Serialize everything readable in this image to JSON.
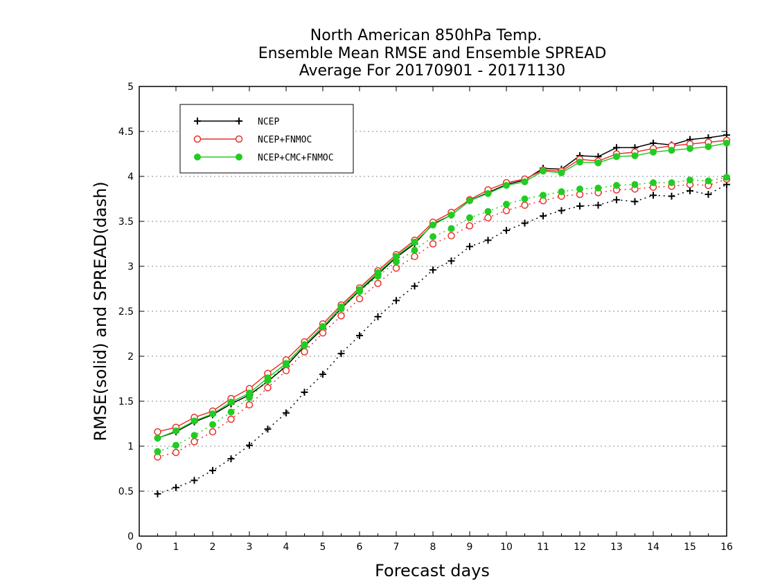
{
  "chart_data": {
    "type": "line",
    "title": [
      "North American 850hPa Temp.",
      "Ensemble Mean RMSE and Ensemble SPREAD",
      "Average For 20170901 - 20171130"
    ],
    "xlabel": "Forecast days",
    "ylabel": "RMSE(solid) and SPREAD(dash)",
    "xlim": [
      0,
      16
    ],
    "ylim": [
      0,
      5
    ],
    "xticks": [
      "0",
      "1",
      "2",
      "3",
      "4",
      "5",
      "6",
      "7",
      "8",
      "9",
      "10",
      "11",
      "12",
      "13",
      "14",
      "15",
      "16"
    ],
    "yticks": [
      "0",
      "0.5",
      "1",
      "1.5",
      "2",
      "2.5",
      "3",
      "3.5",
      "4",
      "4.5",
      "5"
    ],
    "grid": "horizontal-dotted",
    "legend_position": "top-left",
    "legend": [
      "NCEP",
      "NCEP+FNMOC",
      "NCEP+CMC+FNMOC"
    ],
    "x": [
      0.5,
      1,
      1.5,
      2,
      2.5,
      3,
      3.5,
      4,
      4.5,
      5,
      5.5,
      6,
      6.5,
      7,
      7.5,
      8,
      8.5,
      9,
      9.5,
      10,
      10.5,
      11,
      11.5,
      12,
      12.5,
      13,
      13.5,
      14,
      14.5,
      15,
      15.5,
      16
    ],
    "series": [
      {
        "name": "NCEP",
        "kind": "RMSE",
        "marker": "plus",
        "color": "#000000",
        "dash": false,
        "values": [
          1.09,
          1.16,
          1.27,
          1.35,
          1.47,
          1.57,
          1.72,
          1.89,
          2.11,
          2.31,
          2.53,
          2.73,
          2.91,
          3.1,
          3.25,
          3.47,
          3.57,
          3.73,
          3.82,
          3.91,
          3.96,
          4.09,
          4.08,
          4.23,
          4.22,
          4.32,
          4.32,
          4.37,
          4.35,
          4.41,
          4.43,
          4.46
        ]
      },
      {
        "name": "NCEP+FNMOC",
        "kind": "RMSE",
        "marker": "open-circle",
        "color": "#e8302a",
        "dash": false,
        "values": [
          1.16,
          1.21,
          1.32,
          1.39,
          1.53,
          1.64,
          1.81,
          1.96,
          2.16,
          2.36,
          2.57,
          2.76,
          2.95,
          3.13,
          3.29,
          3.49,
          3.6,
          3.74,
          3.85,
          3.93,
          3.97,
          4.07,
          4.06,
          4.19,
          4.17,
          4.25,
          4.27,
          4.31,
          4.34,
          4.36,
          4.38,
          4.4
        ]
      },
      {
        "name": "NCEP+CMC+FNMOC",
        "kind": "RMSE",
        "marker": "filled-circle",
        "color": "#22cc22",
        "dash": false,
        "values": [
          1.09,
          1.17,
          1.28,
          1.36,
          1.49,
          1.59,
          1.76,
          1.92,
          2.13,
          2.33,
          2.55,
          2.74,
          2.93,
          3.11,
          3.27,
          3.46,
          3.57,
          3.73,
          3.81,
          3.9,
          3.94,
          4.06,
          4.04,
          4.16,
          4.15,
          4.22,
          4.23,
          4.27,
          4.29,
          4.31,
          4.33,
          4.37
        ]
      },
      {
        "name": "NCEP",
        "kind": "SPREAD",
        "marker": "plus",
        "color": "#000000",
        "dash": true,
        "values": [
          0.47,
          0.54,
          0.62,
          0.73,
          0.86,
          1.01,
          1.19,
          1.37,
          1.6,
          1.8,
          2.03,
          2.23,
          2.44,
          2.62,
          2.78,
          2.96,
          3.06,
          3.22,
          3.29,
          3.4,
          3.48,
          3.56,
          3.62,
          3.67,
          3.68,
          3.74,
          3.72,
          3.79,
          3.78,
          3.84,
          3.8,
          3.91
        ]
      },
      {
        "name": "NCEP+FNMOC",
        "kind": "SPREAD",
        "marker": "open-circle",
        "color": "#e8302a",
        "dash": true,
        "values": [
          0.88,
          0.93,
          1.05,
          1.16,
          1.3,
          1.46,
          1.65,
          1.84,
          2.05,
          2.26,
          2.45,
          2.64,
          2.81,
          2.98,
          3.11,
          3.25,
          3.34,
          3.45,
          3.54,
          3.62,
          3.68,
          3.73,
          3.78,
          3.8,
          3.82,
          3.85,
          3.86,
          3.88,
          3.89,
          3.91,
          3.9,
          3.97
        ]
      },
      {
        "name": "NCEP+CMC+FNMOC",
        "kind": "SPREAD",
        "marker": "filled-circle",
        "color": "#22cc22",
        "dash": true,
        "values": [
          0.94,
          1.01,
          1.12,
          1.24,
          1.38,
          1.54,
          1.73,
          1.91,
          2.12,
          2.33,
          2.53,
          2.72,
          2.89,
          3.05,
          3.18,
          3.33,
          3.42,
          3.54,
          3.61,
          3.69,
          3.75,
          3.79,
          3.83,
          3.86,
          3.87,
          3.9,
          3.91,
          3.93,
          3.93,
          3.96,
          3.95,
          3.99
        ]
      }
    ]
  }
}
